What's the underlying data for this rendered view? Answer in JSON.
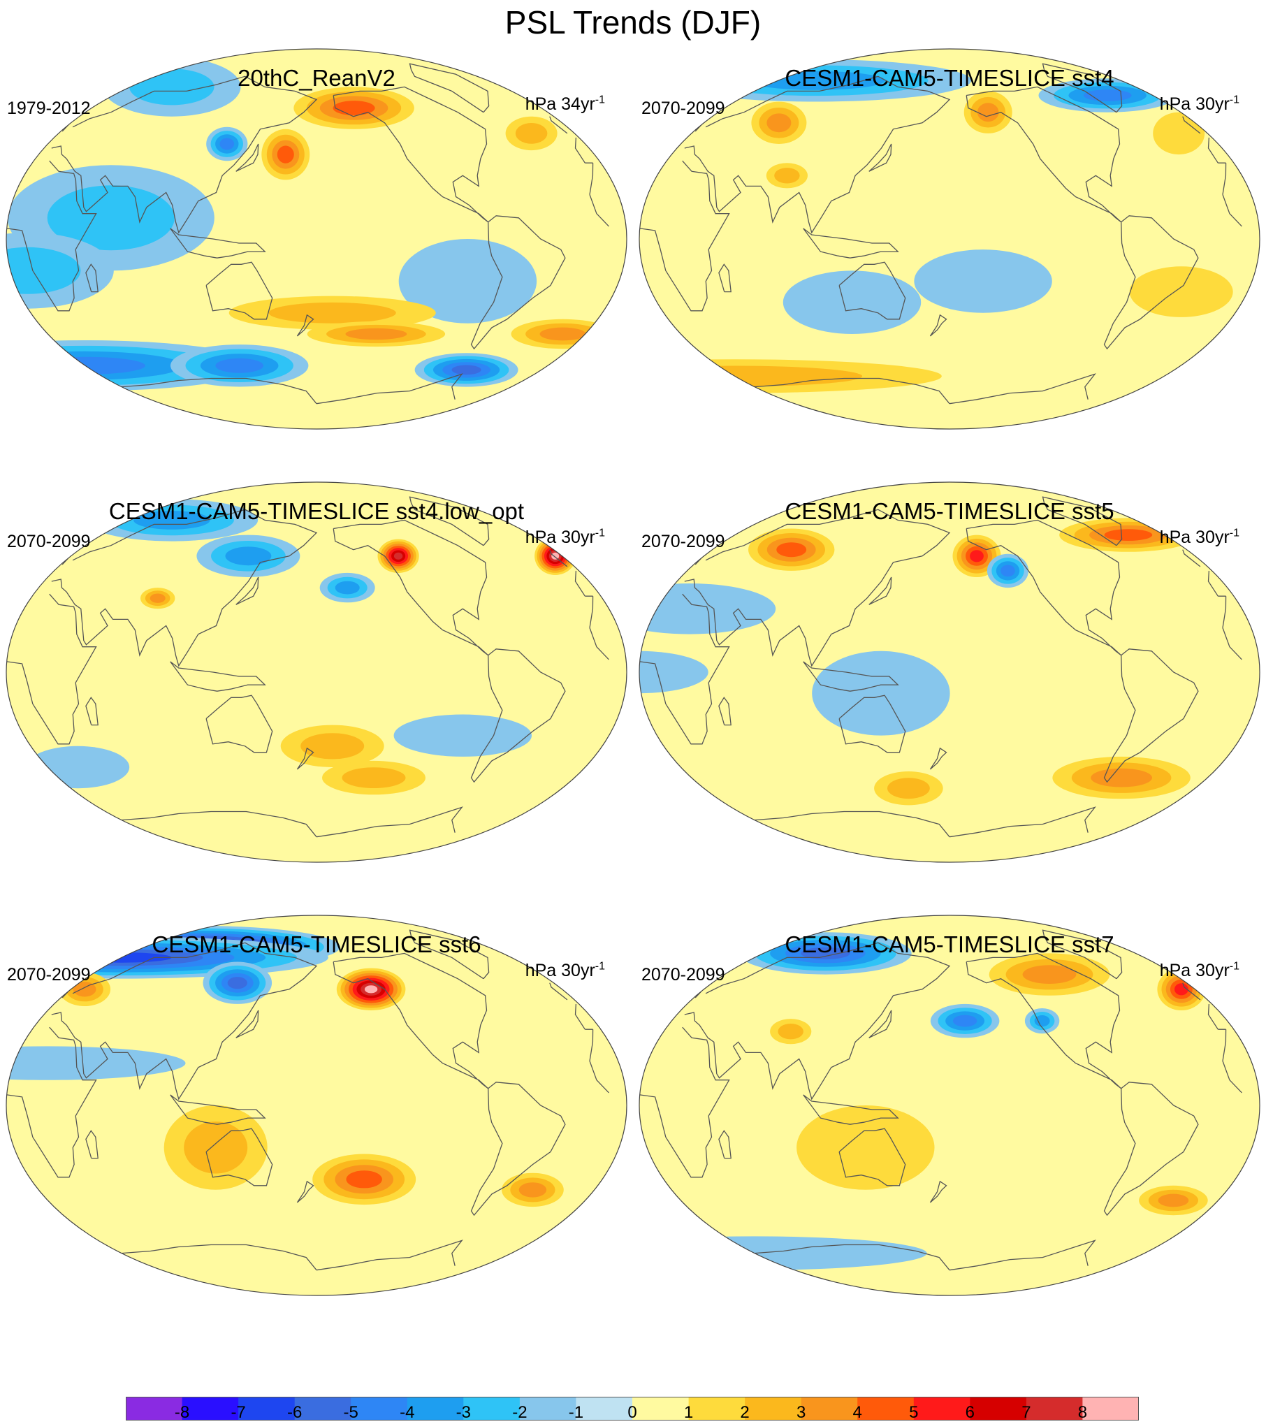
{
  "title": "PSL Trends (DJF)",
  "panels": [
    {
      "id": "p1",
      "title": "20thC_ReanV2",
      "period": "1979-2012",
      "units": "hPa 34yr",
      "units_sup": "-1",
      "blobs": [
        {
          "lon": -150,
          "lat": 62,
          "rx": 35,
          "ry": 10,
          "v": 4
        },
        {
          "lon": -30,
          "lat": 50,
          "rx": 15,
          "ry": 8,
          "v": 2
        },
        {
          "lon": 160,
          "lat": 40,
          "rx": 14,
          "ry": 12,
          "v": 4
        },
        {
          "lon": 40,
          "lat": 72,
          "rx": 40,
          "ry": 14,
          "v": -2
        },
        {
          "lon": 120,
          "lat": 45,
          "rx": 12,
          "ry": 8,
          "v": -4
        },
        {
          "lon": 60,
          "lat": 10,
          "rx": 60,
          "ry": 25,
          "v": -2
        },
        {
          "lon": -90,
          "lat": -20,
          "rx": 40,
          "ry": 20,
          "v": -1
        },
        {
          "lon": 10,
          "lat": -15,
          "rx": 50,
          "ry": 18,
          "v": -2
        },
        {
          "lon": -170,
          "lat": -35,
          "rx": 60,
          "ry": 8,
          "v": 2
        },
        {
          "lon": -140,
          "lat": -45,
          "rx": 40,
          "ry": 6,
          "v": 3
        },
        {
          "lon": 0,
          "lat": -60,
          "rx": 100,
          "ry": 12,
          "v": -4
        },
        {
          "lon": -60,
          "lat": -62,
          "rx": 30,
          "ry": 8,
          "v": -5
        },
        {
          "lon": 120,
          "lat": -60,
          "rx": 40,
          "ry": 10,
          "v": -4
        },
        {
          "lon": -15,
          "lat": -45,
          "rx": 30,
          "ry": 7,
          "v": 3
        }
      ]
    },
    {
      "id": "p2",
      "title": "CESM1-CAM5-TIMESLICE sst4",
      "period": "2070-2099",
      "units": "hPa 30yr",
      "units_sup": "-1",
      "blobs": [
        {
          "lon": 40,
          "lat": 75,
          "rx": 90,
          "ry": 10,
          "v": -3
        },
        {
          "lon": -40,
          "lat": 68,
          "rx": 40,
          "ry": 8,
          "v": -4
        },
        {
          "lon": 55,
          "lat": 55,
          "rx": 16,
          "ry": 10,
          "v": 3
        },
        {
          "lon": -150,
          "lat": 60,
          "rx": 14,
          "ry": 10,
          "v": 3
        },
        {
          "lon": -20,
          "lat": 50,
          "rx": 15,
          "ry": 10,
          "v": 1
        },
        {
          "lon": 80,
          "lat": 30,
          "rx": 12,
          "ry": 6,
          "v": 2
        },
        {
          "lon": -160,
          "lat": -20,
          "rx": 40,
          "ry": 15,
          "v": -1
        },
        {
          "lon": 120,
          "lat": -30,
          "rx": 40,
          "ry": 15,
          "v": -1
        },
        {
          "lon": 0,
          "lat": -65,
          "rx": 120,
          "ry": 8,
          "v": 2
        },
        {
          "lon": -40,
          "lat": -25,
          "rx": 30,
          "ry": 12,
          "v": 1
        }
      ]
    },
    {
      "id": "p3",
      "title": "CESM1-CAM5-TIMESLICE sst4.low_opt",
      "period": "2070-2099",
      "units": "hPa 30yr",
      "units_sup": "-1",
      "blobs": [
        {
          "lon": -120,
          "lat": 55,
          "rx": 12,
          "ry": 8,
          "v": 7
        },
        {
          "lon": -5,
          "lat": 55,
          "rx": 12,
          "ry": 9,
          "v": 8
        },
        {
          "lon": 40,
          "lat": 72,
          "rx": 50,
          "ry": 10,
          "v": -3
        },
        {
          "lon": 130,
          "lat": 55,
          "rx": 30,
          "ry": 10,
          "v": -3
        },
        {
          "lon": -160,
          "lat": 40,
          "rx": 16,
          "ry": 7,
          "v": -3
        },
        {
          "lon": 80,
          "lat": 35,
          "rx": 10,
          "ry": 5,
          "v": 3
        },
        {
          "lon": -90,
          "lat": -30,
          "rx": 40,
          "ry": 10,
          "v": -1
        },
        {
          "lon": -170,
          "lat": -35,
          "rx": 30,
          "ry": 10,
          "v": 2
        },
        {
          "lon": -140,
          "lat": -50,
          "rx": 30,
          "ry": 8,
          "v": 2
        },
        {
          "lon": 20,
          "lat": -45,
          "rx": 30,
          "ry": 10,
          "v": -1
        }
      ]
    },
    {
      "id": "p4",
      "title": "CESM1-CAM5-TIMESLICE sst5",
      "period": "2070-2099",
      "units": "hPa 30yr",
      "units_sup": "-1",
      "blobs": [
        {
          "lon": -160,
          "lat": 55,
          "rx": 14,
          "ry": 10,
          "v": 5
        },
        {
          "lon": 60,
          "lat": 58,
          "rx": 25,
          "ry": 10,
          "v": 4
        },
        {
          "lon": -30,
          "lat": 65,
          "rx": 40,
          "ry": 8,
          "v": 4
        },
        {
          "lon": -140,
          "lat": 48,
          "rx": 12,
          "ry": 8,
          "v": -4
        },
        {
          "lon": 20,
          "lat": 30,
          "rx": 50,
          "ry": 12,
          "v": -1
        },
        {
          "lon": 140,
          "lat": -10,
          "rx": 40,
          "ry": 20,
          "v": -1
        },
        {
          "lon": -60,
          "lat": -50,
          "rx": 40,
          "ry": 10,
          "v": 3
        },
        {
          "lon": 150,
          "lat": -55,
          "rx": 20,
          "ry": 8,
          "v": 2
        },
        {
          "lon": 0,
          "lat": 0,
          "rx": 40,
          "ry": 10,
          "v": -1
        }
      ]
    },
    {
      "id": "p5",
      "title": "CESM1-CAM5-TIMESLICE sst6",
      "period": "2070-2099",
      "units": "hPa 30yr",
      "units_sup": "-1",
      "blobs": [
        {
          "lon": 60,
          "lat": 75,
          "rx": 80,
          "ry": 10,
          "v": -8
        },
        {
          "lon": 0,
          "lat": 70,
          "rx": 120,
          "ry": 10,
          "v": -6
        },
        {
          "lon": 120,
          "lat": 58,
          "rx": 20,
          "ry": 10,
          "v": -5
        },
        {
          "lon": -140,
          "lat": 55,
          "rx": 20,
          "ry": 10,
          "v": 8
        },
        {
          "lon": 10,
          "lat": 55,
          "rx": 15,
          "ry": 8,
          "v": 3
        },
        {
          "lon": 20,
          "lat": 20,
          "rx": 80,
          "ry": 8,
          "v": -1
        },
        {
          "lon": -150,
          "lat": -35,
          "rx": 30,
          "ry": 12,
          "v": 4
        },
        {
          "lon": -40,
          "lat": -40,
          "rx": 18,
          "ry": 8,
          "v": 3
        },
        {
          "lon": 120,
          "lat": -20,
          "rx": 30,
          "ry": 20,
          "v": 2
        }
      ]
    },
    {
      "id": "p6",
      "title": "CESM1-CAM5-TIMESLICE sst7",
      "period": "2070-2099",
      "units": "hPa 30yr",
      "units_sup": "-1",
      "blobs": [
        {
          "lon": 60,
          "lat": 72,
          "rx": 50,
          "ry": 10,
          "v": -5
        },
        {
          "lon": -100,
          "lat": 62,
          "rx": 35,
          "ry": 10,
          "v": 3
        },
        {
          "lon": -10,
          "lat": 55,
          "rx": 14,
          "ry": 10,
          "v": 5
        },
        {
          "lon": -170,
          "lat": 40,
          "rx": 20,
          "ry": 8,
          "v": -4
        },
        {
          "lon": -120,
          "lat": 40,
          "rx": 10,
          "ry": 6,
          "v": -3
        },
        {
          "lon": 80,
          "lat": 35,
          "rx": 12,
          "ry": 6,
          "v": 2
        },
        {
          "lon": -30,
          "lat": -45,
          "rx": 20,
          "ry": 7,
          "v": 3
        },
        {
          "lon": 0,
          "lat": -70,
          "rx": 100,
          "ry": 8,
          "v": -1
        },
        {
          "lon": 130,
          "lat": -20,
          "rx": 40,
          "ry": 20,
          "v": 1
        }
      ]
    }
  ],
  "colorbar": {
    "labels": [
      "-8",
      "-7",
      "-6",
      "-5",
      "-4",
      "-3",
      "-2",
      "-1",
      "0",
      "1",
      "2",
      "3",
      "4",
      "5",
      "6",
      "7",
      "8"
    ],
    "colors": [
      "#8a2be2",
      "#2a0fff",
      "#1e46f0",
      "#3a6de0",
      "#2e86f5",
      "#1e9ef0",
      "#2fc3f6",
      "#87c6ec",
      "#bfe2f2",
      "#fffaa0",
      "#fedb3c",
      "#fbb81d",
      "#f9951d",
      "#ff5a0a",
      "#ff1a1a",
      "#d60000",
      "#d52c2c",
      "#ffb3b3"
    ]
  },
  "map_colors": {
    "ocean_base": "#fffaa0",
    "coast": "#555555",
    "frame": "#444444"
  }
}
